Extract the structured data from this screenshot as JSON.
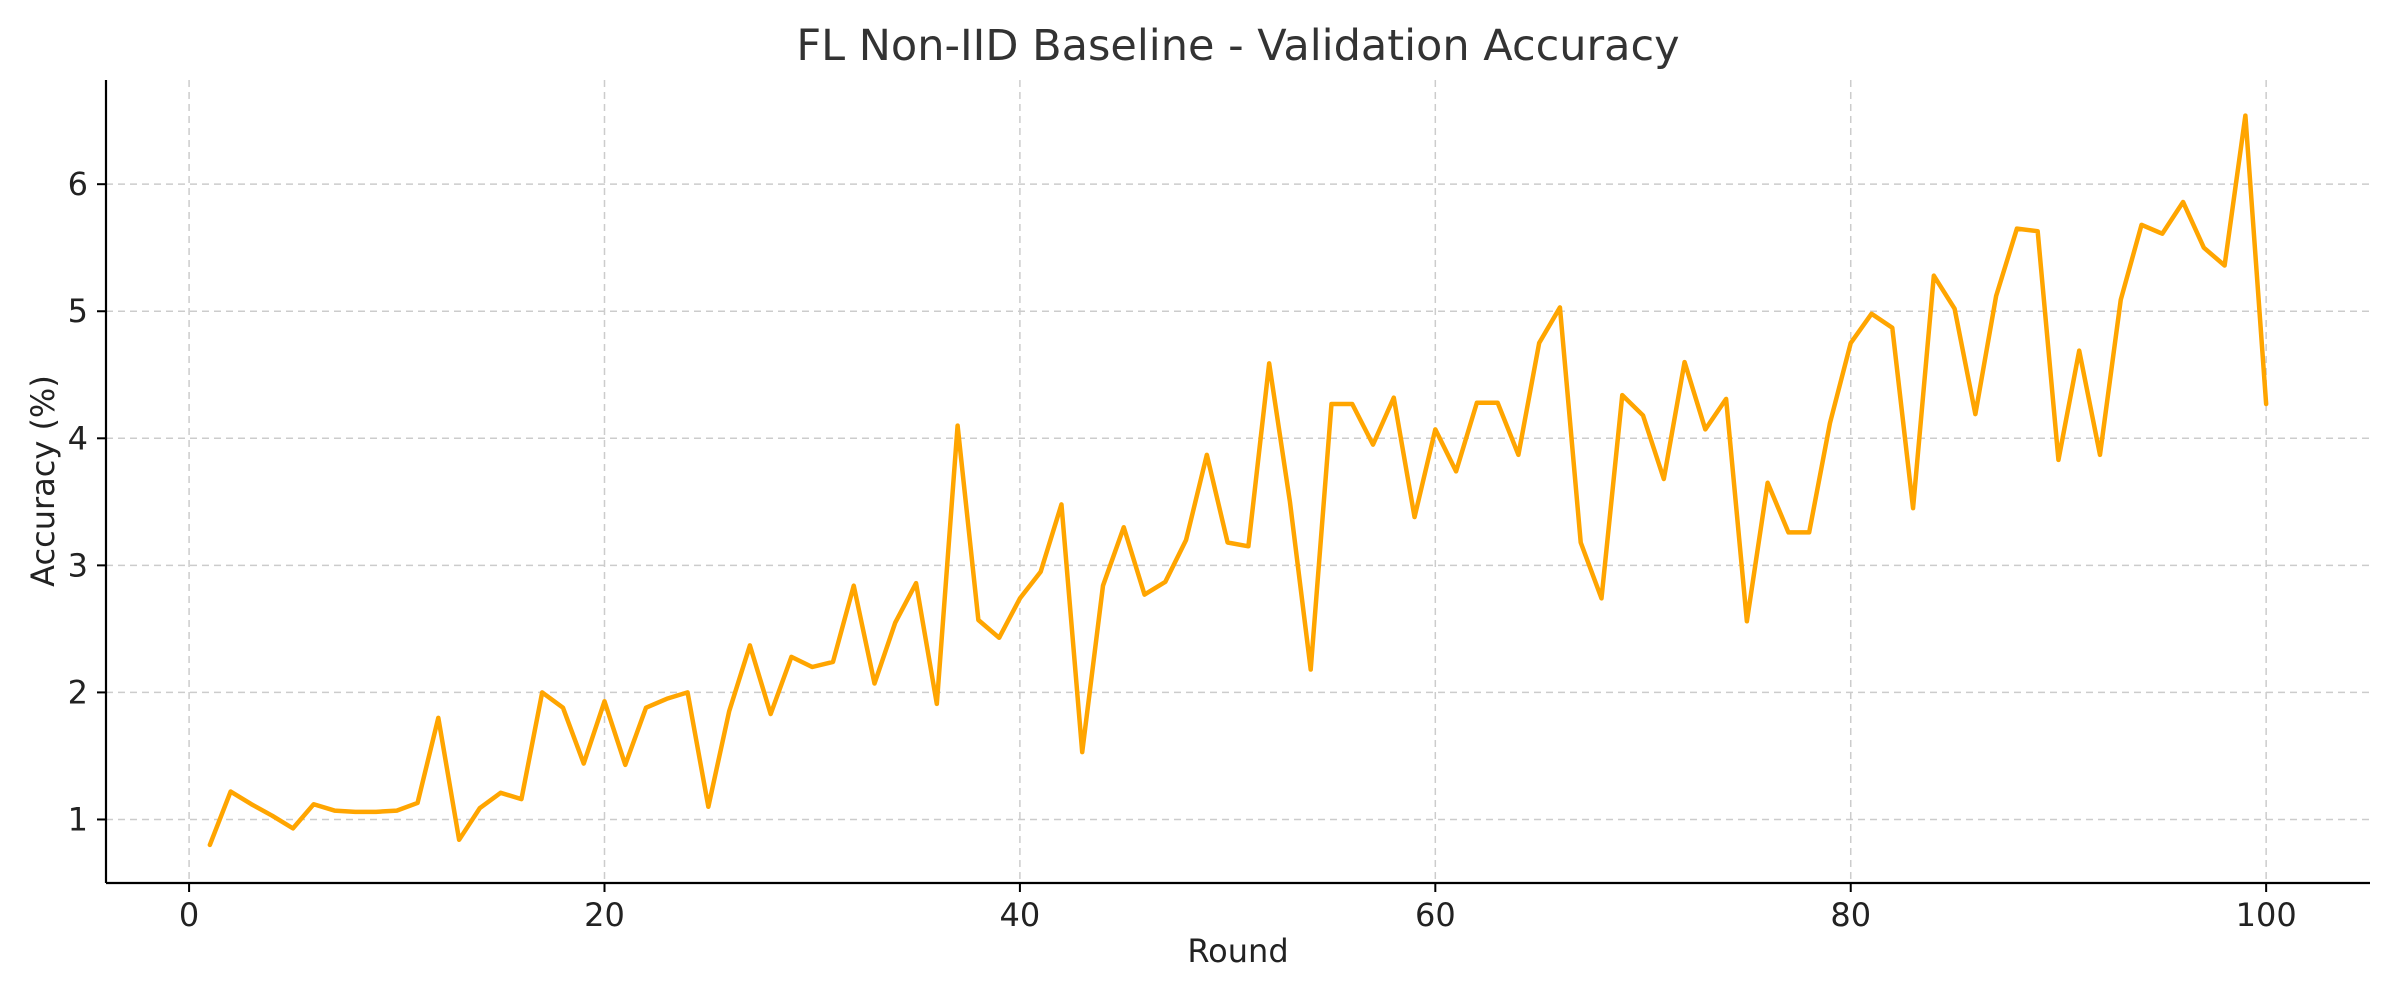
{
  "chart_data": {
    "type": "line",
    "title": "FL Non-IID Baseline - Validation Accuracy",
    "xlabel": "Round",
    "ylabel": "Accuracy (%)",
    "xlim": [
      -4,
      105
    ],
    "ylim": [
      0.5,
      6.82
    ],
    "xticks": [
      0,
      20,
      40,
      60,
      80,
      100
    ],
    "yticks": [
      1,
      2,
      3,
      4,
      5,
      6
    ],
    "grid": true,
    "legend": "none",
    "series_color": "#FFA500",
    "series": [
      {
        "x": [
          1,
          2,
          3,
          4,
          5,
          6,
          7,
          8,
          9,
          10,
          11,
          12,
          13,
          14,
          15,
          16,
          17,
          18,
          19,
          20,
          21,
          22,
          23,
          24,
          25,
          26,
          27,
          28,
          29,
          30,
          31,
          32,
          33,
          34,
          35,
          36,
          37,
          38,
          39,
          40,
          41,
          42,
          43,
          44,
          45,
          46,
          47,
          48,
          49,
          50,
          51,
          52,
          53,
          54,
          55,
          56,
          57,
          58,
          59,
          60,
          61,
          62,
          63,
          64,
          65,
          66,
          67,
          68,
          69,
          70,
          71,
          72,
          73,
          74,
          75,
          76,
          77,
          78,
          79,
          80,
          81,
          82,
          83,
          84,
          85,
          86,
          87,
          88,
          89,
          90,
          91,
          92,
          93,
          94,
          95,
          96,
          97,
          98,
          99,
          100
        ],
        "values": [
          0.8,
          1.22,
          1.12,
          1.03,
          0.93,
          1.12,
          1.07,
          1.06,
          1.06,
          1.07,
          1.13,
          1.8,
          0.84,
          1.09,
          1.21,
          1.16,
          2.0,
          1.88,
          1.44,
          1.93,
          1.43,
          1.88,
          1.95,
          2.0,
          1.1,
          1.85,
          2.37,
          1.83,
          2.28,
          2.2,
          2.24,
          2.84,
          2.07,
          2.55,
          2.86,
          1.91,
          4.1,
          2.57,
          2.43,
          2.74,
          2.95,
          3.48,
          1.53,
          2.84,
          3.3,
          2.77,
          2.87,
          3.2,
          3.87,
          3.18,
          3.15,
          4.59,
          3.5,
          2.18,
          4.27,
          4.27,
          3.95,
          4.32,
          3.38,
          4.07,
          3.74,
          4.28,
          4.28,
          3.87,
          4.75,
          5.03,
          3.18,
          2.74,
          4.34,
          4.18,
          3.68,
          4.6,
          4.07,
          4.31,
          2.56,
          3.65,
          3.26,
          3.26,
          4.12,
          4.75,
          4.98,
          4.87,
          3.45,
          5.28,
          5.02,
          4.19,
          5.12,
          5.65,
          5.63,
          3.83,
          4.69,
          3.87,
          5.09,
          5.68,
          5.61,
          5.86,
          5.5,
          5.36,
          6.54,
          4.27
        ]
      }
    ]
  }
}
